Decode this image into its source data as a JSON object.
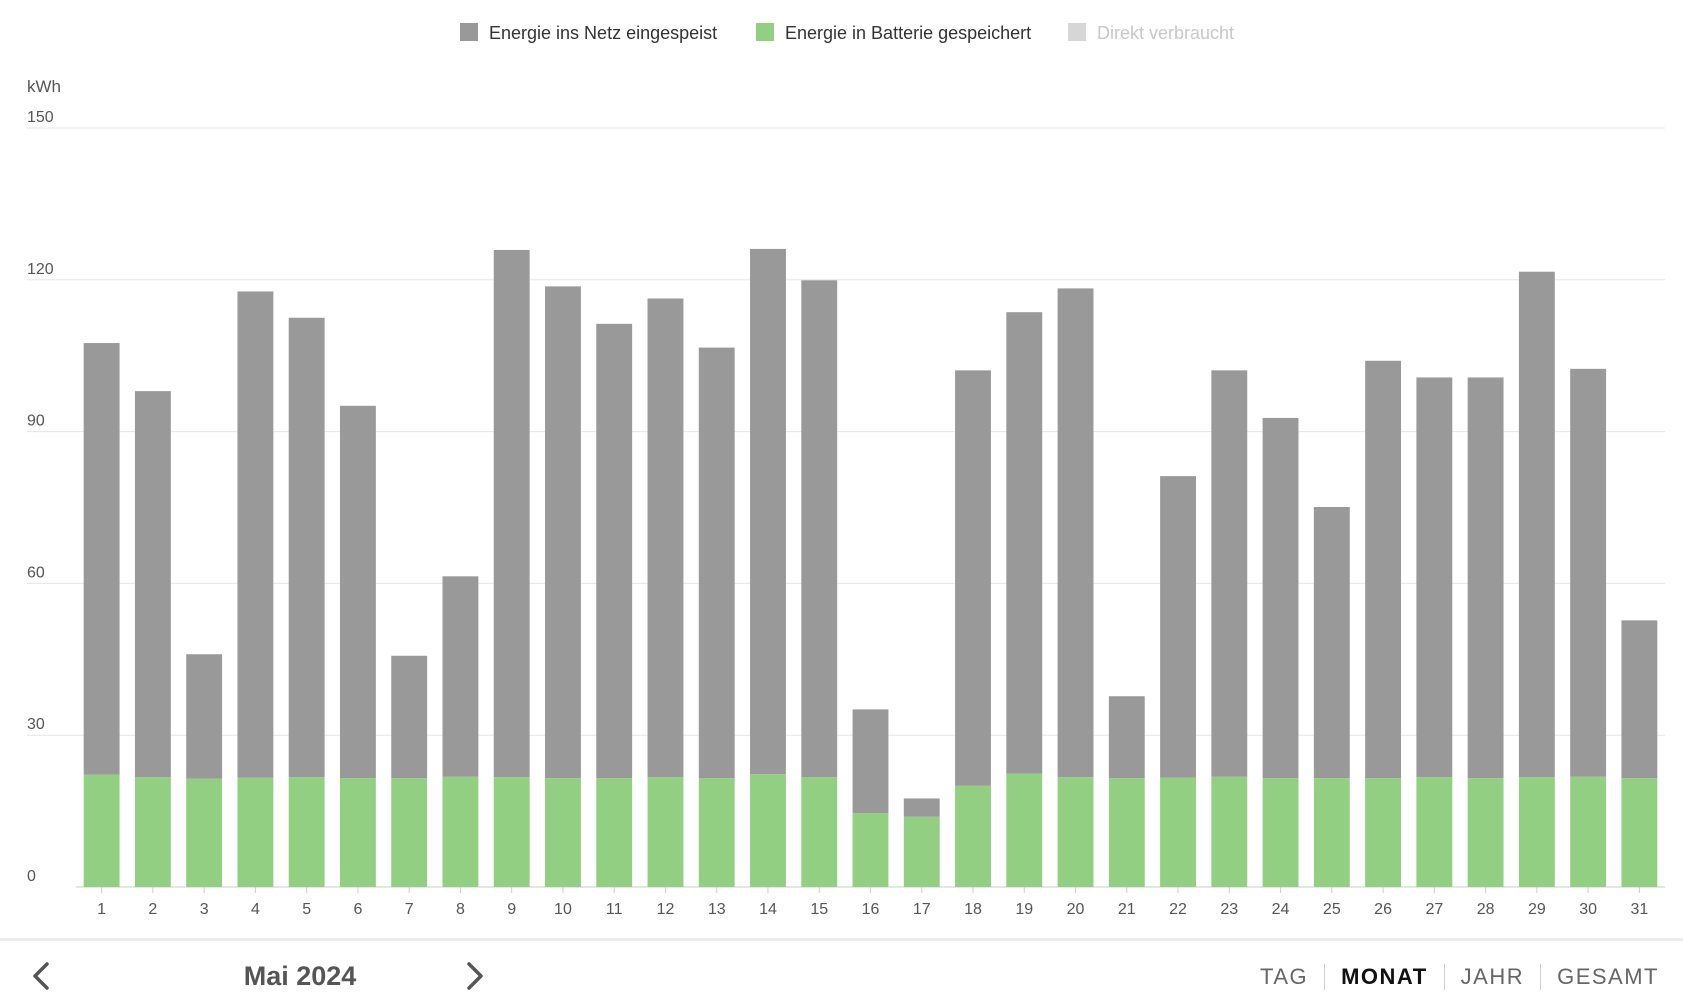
{
  "legend": [
    {
      "label": "Energie ins Netz eingespeist",
      "color": "#999999",
      "active": true
    },
    {
      "label": "Energie in Batterie gespeichert",
      "color": "#93cf83",
      "active": true
    },
    {
      "label": "Direkt verbraucht",
      "color": "#d6d6d6",
      "active": false
    }
  ],
  "chart_data": {
    "type": "bar",
    "stacked": true,
    "ylabel": "kWh",
    "ylim": [
      0,
      150
    ],
    "yticks": [
      0,
      30,
      60,
      90,
      120,
      150
    ],
    "grid": true,
    "legend_position": "top",
    "categories": [
      "1",
      "2",
      "3",
      "4",
      "5",
      "6",
      "7",
      "8",
      "9",
      "10",
      "11",
      "12",
      "13",
      "14",
      "15",
      "16",
      "17",
      "18",
      "19",
      "20",
      "21",
      "22",
      "23",
      "24",
      "25",
      "26",
      "27",
      "28",
      "29",
      "30",
      "31"
    ],
    "series": [
      {
        "name": "Energie in Batterie gespeichert",
        "color": "#93cf83",
        "values": [
          22.2,
          21.7,
          21.4,
          21.6,
          21.7,
          21.5,
          21.5,
          21.8,
          21.7,
          21.5,
          21.5,
          21.7,
          21.5,
          22.3,
          21.7,
          14.6,
          13.9,
          20.0,
          22.4,
          21.7,
          21.5,
          21.6,
          21.8,
          21.5,
          21.5,
          21.5,
          21.7,
          21.5,
          21.7,
          21.8,
          21.5
        ]
      },
      {
        "name": "Energie ins Netz eingespeist",
        "color": "#999999",
        "values": [
          85.3,
          76.3,
          24.6,
          96.1,
          90.8,
          73.6,
          24.2,
          39.6,
          104.2,
          97.2,
          89.8,
          94.6,
          85.1,
          103.8,
          98.2,
          20.5,
          3.6,
          82.1,
          91.2,
          96.6,
          16.2,
          59.6,
          80.3,
          71.2,
          53.6,
          82.5,
          79.0,
          79.2,
          99.9,
          80.6,
          31.2
        ]
      }
    ]
  },
  "footer": {
    "prev_icon": "chevron-left-icon",
    "next_icon": "chevron-right-icon",
    "period_label": "Mai 2024",
    "tabs": [
      {
        "label": "TAG",
        "active": false
      },
      {
        "label": "MONAT",
        "active": true
      },
      {
        "label": "JAHR",
        "active": false
      },
      {
        "label": "GESAMT",
        "active": false
      }
    ]
  }
}
